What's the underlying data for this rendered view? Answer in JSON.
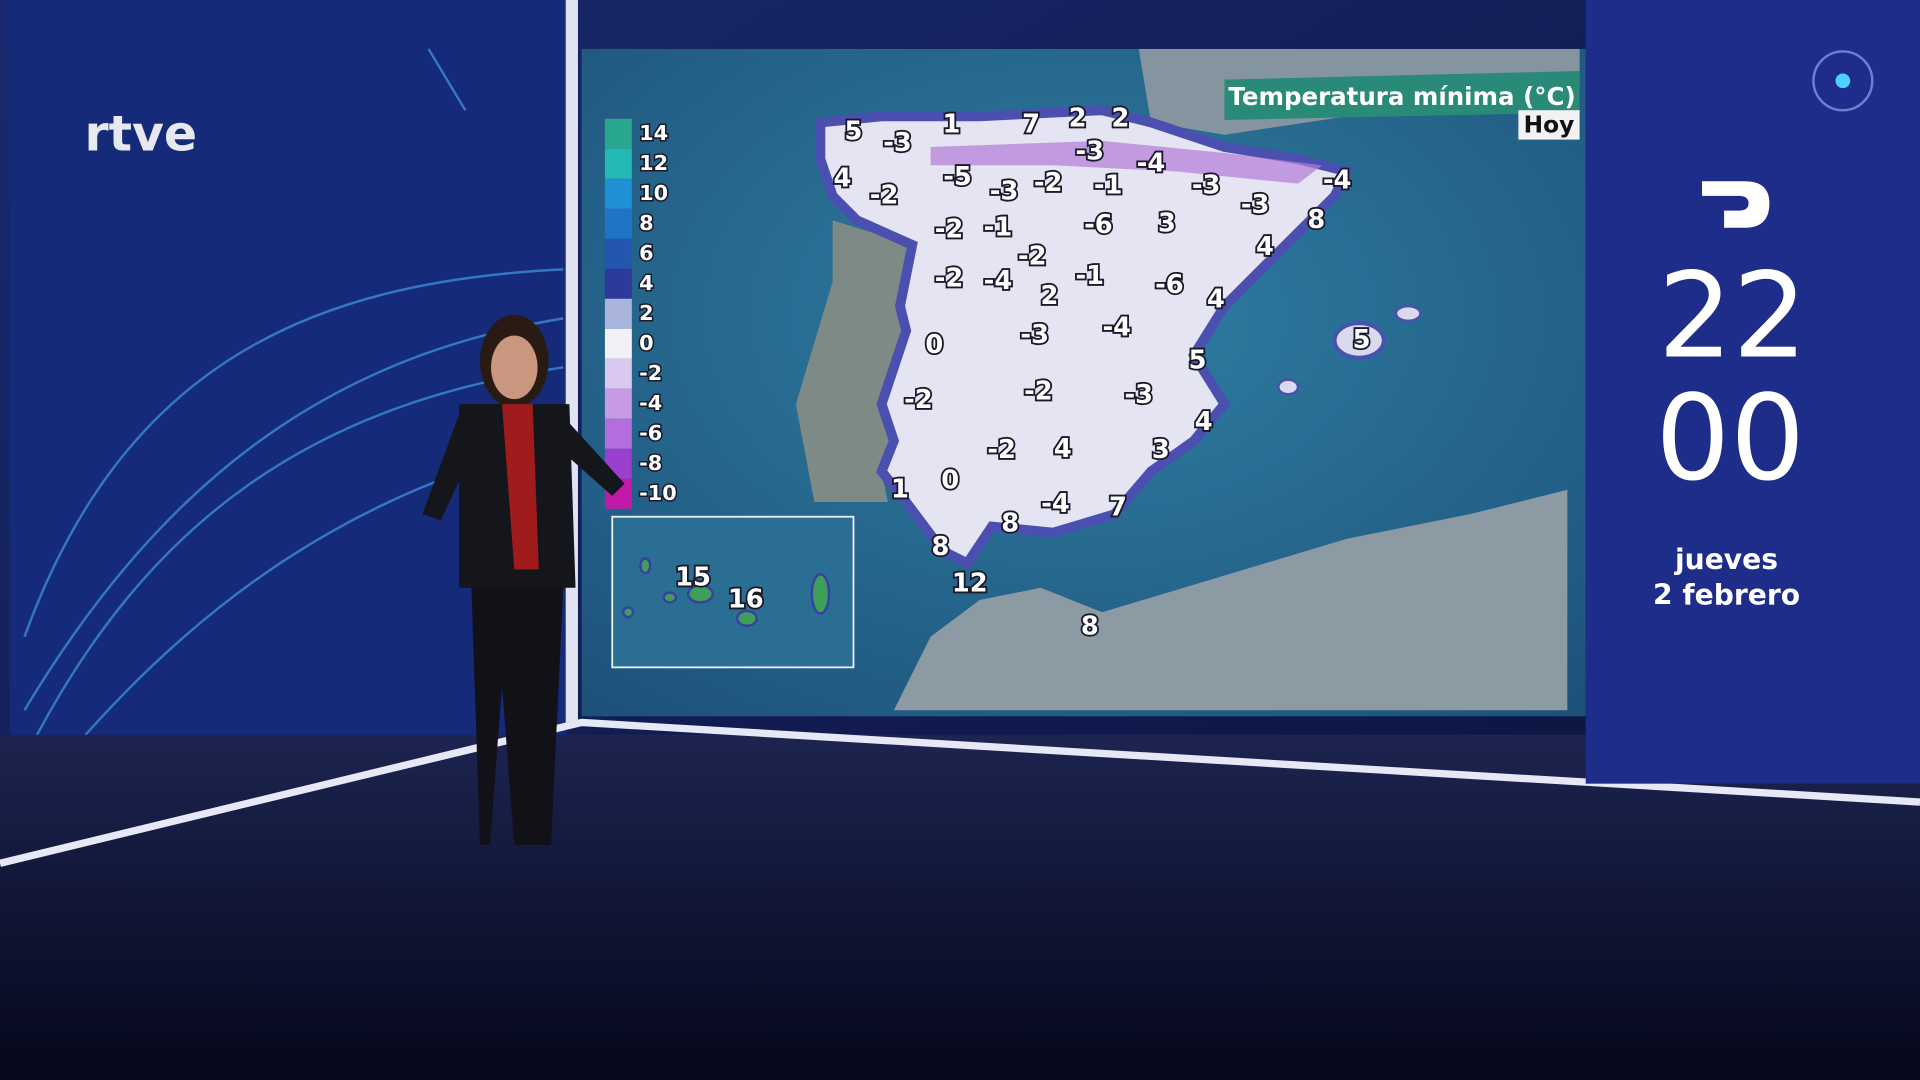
{
  "logo": "rtve",
  "map": {
    "title": "Temperatura mínima (°C)",
    "day": "Hoy",
    "legend": [
      14,
      12,
      10,
      8,
      6,
      4,
      2,
      0,
      -2,
      -4,
      -6,
      -8,
      -10
    ],
    "labels": [
      5,
      -3,
      1,
      7,
      2,
      2,
      -3,
      -4,
      4,
      -2,
      -5,
      -3,
      -2,
      -1,
      -3,
      -3,
      -4,
      -2,
      -1,
      -6,
      3,
      8,
      4,
      -2,
      -2,
      -4,
      2,
      -1,
      -6,
      4,
      0,
      -3,
      -4,
      5,
      5,
      -2,
      -2,
      -3,
      4,
      -2,
      4,
      3,
      1,
      0,
      -4,
      7,
      8,
      8,
      12,
      8
    ],
    "canary_labels": [
      15,
      16
    ]
  },
  "clock": {
    "hours": "22",
    "minutes": "00"
  },
  "date": {
    "weekday": "jueves",
    "day": "2 febrero"
  }
}
